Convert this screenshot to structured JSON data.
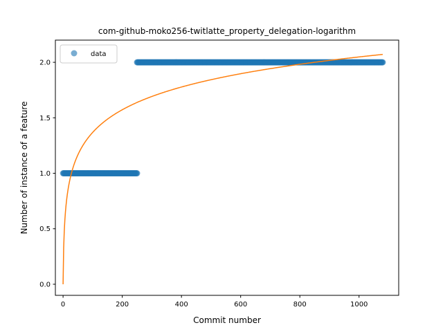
{
  "chart_data": {
    "type": "scatter",
    "title": "com-github-moko256-twitlatte_property_delegation-logarithm",
    "xlabel": "Commit number",
    "ylabel": "Number of instance of a feature",
    "xlim": [
      -26,
      1134
    ],
    "ylim": [
      -0.1,
      2.2
    ],
    "xticks": [
      0,
      200,
      400,
      600,
      800,
      1000
    ],
    "yticks": [
      0.0,
      0.5,
      1.0,
      1.5,
      2.0
    ],
    "xtick_labels": [
      "0",
      "200",
      "400",
      "600",
      "800",
      "1000"
    ],
    "ytick_labels": [
      "0.0",
      "0.5",
      "1.0",
      "1.5",
      "2.0"
    ],
    "grid": false,
    "legend_position": "top-left",
    "series": [
      {
        "name": "data",
        "kind": "scatter",
        "color": "#1f77b4",
        "segments": [
          {
            "x_start": 0,
            "x_end": 250,
            "y": 1
          },
          {
            "x_start": 250,
            "x_end": 1080,
            "y": 2
          }
        ]
      },
      {
        "kind": "line",
        "color": "#ff7f0e",
        "fit": "logarithmic",
        "points": [
          [
            0,
            0.0
          ],
          [
            100,
            1.37
          ],
          [
            200,
            1.58
          ],
          [
            400,
            1.78
          ],
          [
            600,
            1.89
          ],
          [
            800,
            1.97
          ],
          [
            1000,
            2.04
          ],
          [
            1080,
            2.07
          ]
        ]
      }
    ]
  }
}
